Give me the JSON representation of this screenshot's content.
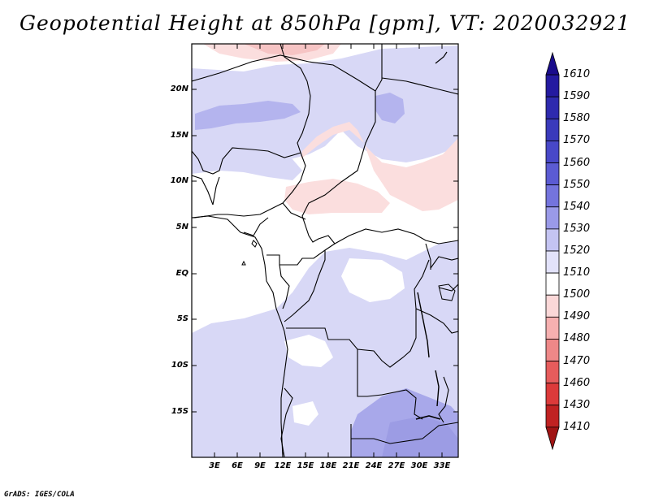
{
  "title": "Geopotential Height at 850hPa [gpm], VT: 2020032921",
  "footer": "GrADS: IGES/COLA",
  "map": {
    "lat_labels": [
      "20N",
      "15N",
      "10N",
      "5N",
      "EQ",
      "5S",
      "10S",
      "15S"
    ],
    "lon_labels": [
      "3E",
      "6E",
      "9E",
      "12E",
      "15E",
      "18E",
      "21E",
      "24E",
      "27E",
      "30E",
      "33E"
    ]
  },
  "colorbar": {
    "levels": [
      "1610",
      "1590",
      "1580",
      "1570",
      "1560",
      "1550",
      "1540",
      "1530",
      "1520",
      "1510",
      "1500",
      "1490",
      "1480",
      "1470",
      "1460",
      "1430",
      "1410"
    ],
    "colors": [
      "#1a0c8c",
      "#241aa0",
      "#2e2aae",
      "#3a3abb",
      "#4848c8",
      "#5b5bd3",
      "#7474dd",
      "#9a9ae8",
      "#c4c4f2",
      "#e2e2fa",
      "#ffffff",
      "#fbd8d8",
      "#f6b0b0",
      "#ee8888",
      "#e65c5c",
      "#dc3a3a",
      "#c02222",
      "#a01414"
    ]
  }
}
